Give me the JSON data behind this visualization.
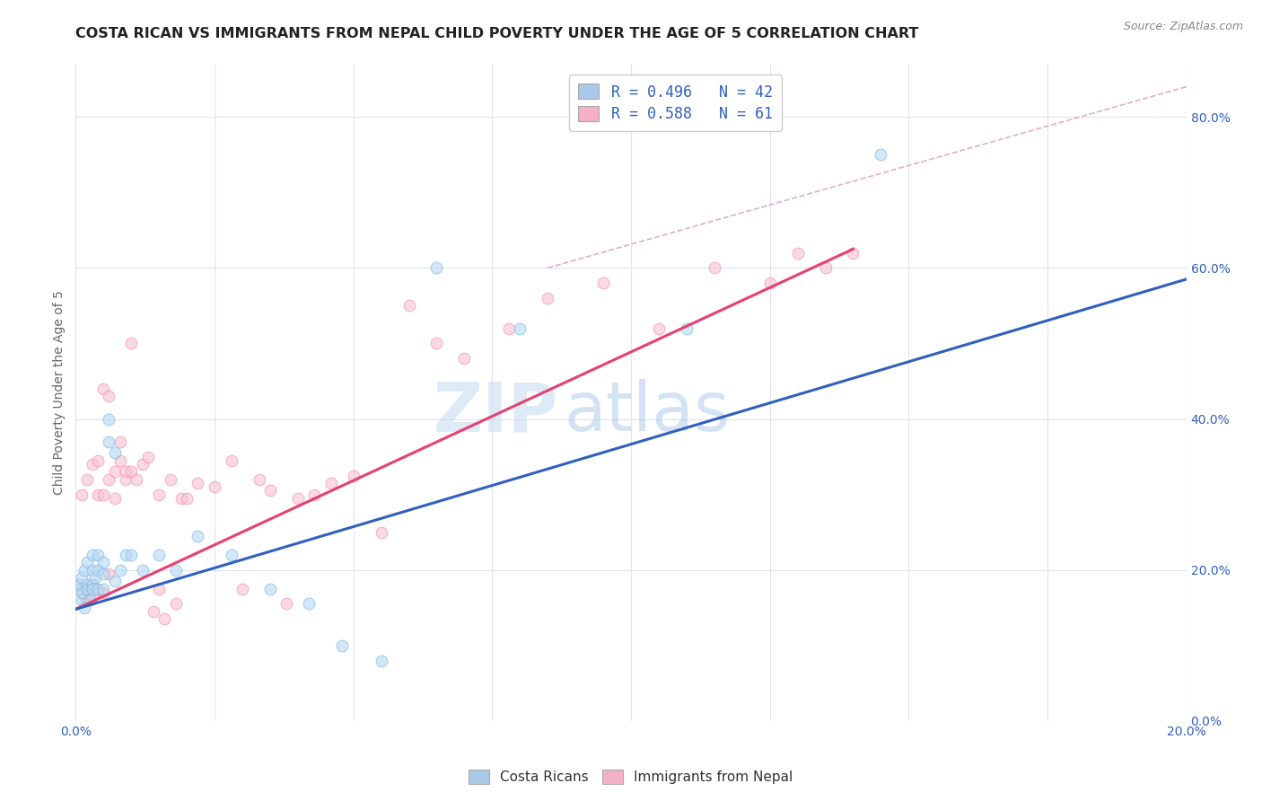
{
  "title": "COSTA RICAN VS IMMIGRANTS FROM NEPAL CHILD POVERTY UNDER THE AGE OF 5 CORRELATION CHART",
  "source": "Source: ZipAtlas.com",
  "ylabel": "Child Poverty Under the Age of 5",
  "xmin": 0.0,
  "xmax": 0.2,
  "ymin": 0.0,
  "ymax": 0.87,
  "right_yticks": [
    0.0,
    0.2,
    0.4,
    0.6,
    0.8
  ],
  "right_yticklabels": [
    "0.0%",
    "20.0%",
    "40.0%",
    "60.0%",
    "80.0%"
  ],
  "legend_entries": [
    {
      "label": "R = 0.496   N = 42",
      "color": "#aac8e8"
    },
    {
      "label": "R = 0.588   N = 61",
      "color": "#f4b0c8"
    }
  ],
  "blue_color": "#7ab8e8",
  "pink_color": "#f090b0",
  "blue_fill": "#b8d8f0",
  "pink_fill": "#f8c0d0",
  "blue_line_color": "#3060c0",
  "pink_line_color": "#e84070",
  "ref_line_color": "#c8c8d8",
  "legend_r_color": "#3060c0",
  "background_color": "#ffffff",
  "grid_color": "#dde4f0",
  "watermark_zip_color": "#c8ddf0",
  "watermark_atlas_color": "#a8c8e8",
  "costa_ricans_x": [
    0.0005,
    0.0008,
    0.001,
    0.001,
    0.0012,
    0.0015,
    0.0015,
    0.002,
    0.002,
    0.002,
    0.0025,
    0.003,
    0.003,
    0.003,
    0.003,
    0.0035,
    0.004,
    0.004,
    0.004,
    0.005,
    0.005,
    0.005,
    0.006,
    0.006,
    0.007,
    0.007,
    0.008,
    0.009,
    0.01,
    0.012,
    0.015,
    0.018,
    0.022,
    0.028,
    0.035,
    0.042,
    0.048,
    0.055,
    0.065,
    0.08,
    0.11,
    0.145
  ],
  "costa_ricans_y": [
    0.175,
    0.18,
    0.16,
    0.19,
    0.17,
    0.15,
    0.2,
    0.18,
    0.21,
    0.175,
    0.16,
    0.2,
    0.18,
    0.22,
    0.175,
    0.19,
    0.2,
    0.175,
    0.22,
    0.195,
    0.21,
    0.175,
    0.4,
    0.37,
    0.355,
    0.185,
    0.2,
    0.22,
    0.22,
    0.2,
    0.22,
    0.2,
    0.245,
    0.22,
    0.175,
    0.155,
    0.1,
    0.08,
    0.6,
    0.52,
    0.52,
    0.75
  ],
  "nepal_x": [
    0.0005,
    0.001,
    0.0015,
    0.002,
    0.002,
    0.002,
    0.003,
    0.003,
    0.003,
    0.004,
    0.004,
    0.004,
    0.005,
    0.005,
    0.005,
    0.006,
    0.006,
    0.006,
    0.007,
    0.007,
    0.008,
    0.008,
    0.009,
    0.009,
    0.01,
    0.01,
    0.011,
    0.012,
    0.013,
    0.014,
    0.015,
    0.015,
    0.016,
    0.017,
    0.018,
    0.019,
    0.02,
    0.022,
    0.025,
    0.028,
    0.03,
    0.033,
    0.035,
    0.038,
    0.04,
    0.043,
    0.046,
    0.05,
    0.055,
    0.06,
    0.065,
    0.07,
    0.078,
    0.085,
    0.095,
    0.105,
    0.115,
    0.125,
    0.13,
    0.135,
    0.14
  ],
  "nepal_y": [
    0.18,
    0.3,
    0.165,
    0.175,
    0.16,
    0.32,
    0.165,
    0.18,
    0.34,
    0.17,
    0.3,
    0.345,
    0.17,
    0.3,
    0.44,
    0.195,
    0.32,
    0.43,
    0.295,
    0.33,
    0.345,
    0.37,
    0.32,
    0.33,
    0.33,
    0.5,
    0.32,
    0.34,
    0.35,
    0.145,
    0.175,
    0.3,
    0.135,
    0.32,
    0.155,
    0.295,
    0.295,
    0.315,
    0.31,
    0.345,
    0.175,
    0.32,
    0.305,
    0.155,
    0.295,
    0.3,
    0.315,
    0.325,
    0.25,
    0.55,
    0.5,
    0.48,
    0.52,
    0.56,
    0.58,
    0.52,
    0.6,
    0.58,
    0.62,
    0.6,
    0.62
  ],
  "blue_line_x": [
    0.0,
    0.2
  ],
  "blue_line_y": [
    0.148,
    0.585
  ],
  "pink_line_x": [
    0.0,
    0.14
  ],
  "pink_line_y": [
    0.148,
    0.625
  ],
  "ref_line_x": [
    0.085,
    0.2
  ],
  "ref_line_y": [
    0.6,
    0.84
  ],
  "marker_size": 85,
  "alpha": 0.6,
  "title_fontsize": 11.5,
  "source_fontsize": 9,
  "label_fontsize": 10,
  "tick_fontsize": 10,
  "legend_fontsize": 12
}
